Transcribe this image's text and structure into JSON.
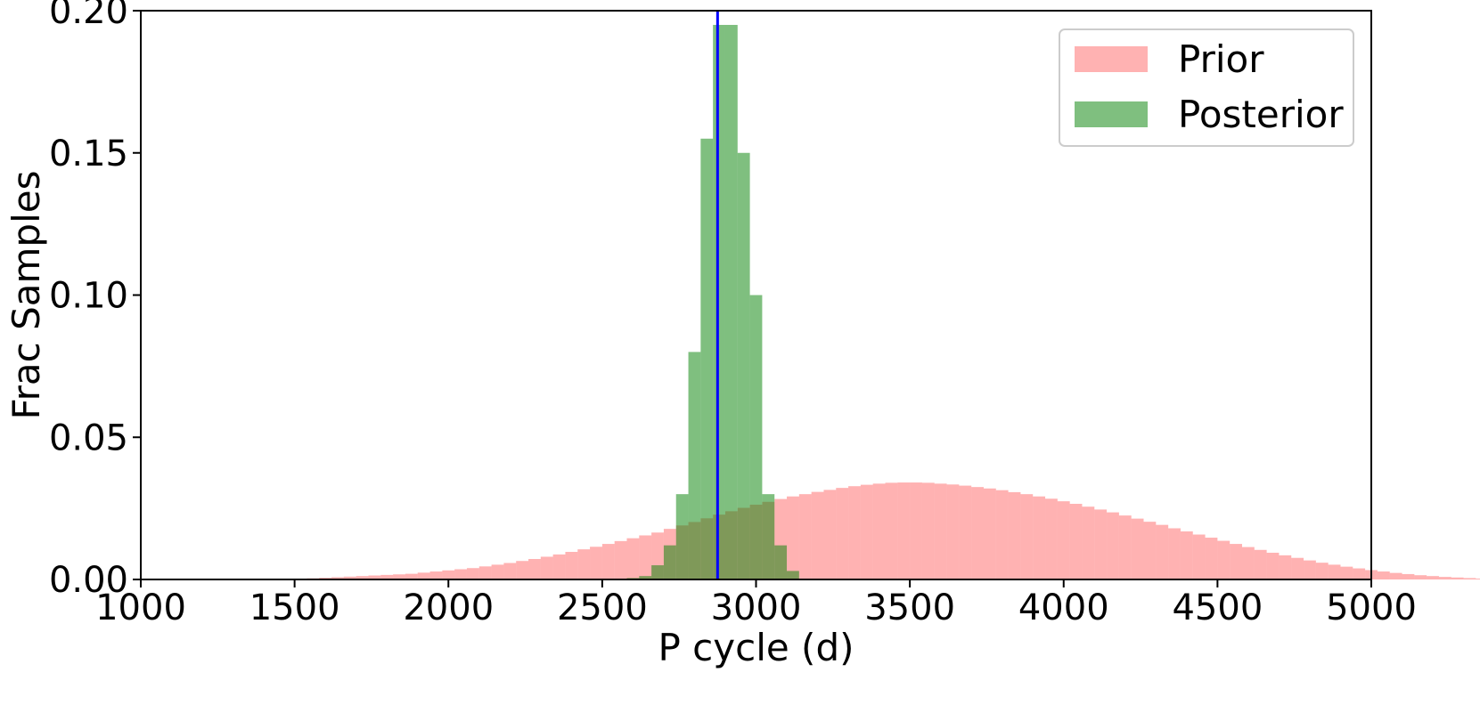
{
  "chart_data": {
    "type": "histogram",
    "title": "",
    "xlabel": "P cycle (d)",
    "ylabel": "Frac Samples",
    "xlim": [
      1000,
      5000
    ],
    "ylim": [
      0,
      0.2
    ],
    "x_ticks": [
      1000,
      1500,
      2000,
      2500,
      3000,
      3500,
      4000,
      4500,
      5000
    ],
    "y_ticks": [
      0.0,
      0.05,
      0.1,
      0.15,
      0.2
    ],
    "x_tick_labels": [
      "1000",
      "1500",
      "2000",
      "2500",
      "3000",
      "3500",
      "4000",
      "4500",
      "5000"
    ],
    "y_tick_labels": [
      "0.00",
      "0.05",
      "0.10",
      "0.15",
      "0.20"
    ],
    "grid": false,
    "legend_position": "top-right",
    "vertical_line": {
      "x": 2875,
      "color": "#0000ff"
    },
    "series": [
      {
        "name": "Prior",
        "color": "#ff0000",
        "opacity": 0.3,
        "bin_start": 1500,
        "bin_width": 40,
        "values": [
          0.0003,
          0.0004,
          0.0006,
          0.0008,
          0.001,
          0.0012,
          0.0014,
          0.0016,
          0.0018,
          0.002,
          0.0024,
          0.0028,
          0.0032,
          0.0036,
          0.004,
          0.0046,
          0.0052,
          0.0058,
          0.0065,
          0.0072,
          0.008,
          0.0088,
          0.0097,
          0.0106,
          0.0115,
          0.0125,
          0.0135,
          0.0145,
          0.0155,
          0.0165,
          0.0178,
          0.019,
          0.0202,
          0.0215,
          0.0228,
          0.024,
          0.0252,
          0.0263,
          0.0273,
          0.0283,
          0.0292,
          0.03,
          0.0308,
          0.0315,
          0.0322,
          0.0328,
          0.0333,
          0.0337,
          0.034,
          0.0341,
          0.0341,
          0.034,
          0.0337,
          0.0334,
          0.033,
          0.0325,
          0.032,
          0.0314,
          0.0307,
          0.03,
          0.0292,
          0.0284,
          0.0275,
          0.0266,
          0.0256,
          0.0246,
          0.0236,
          0.0225,
          0.0214,
          0.0203,
          0.0192,
          0.018,
          0.0169,
          0.0158,
          0.0147,
          0.0136,
          0.0125,
          0.0114,
          0.0104,
          0.0094,
          0.0085,
          0.0076,
          0.0067,
          0.0059,
          0.0052,
          0.0045,
          0.0039,
          0.0033,
          0.0028,
          0.0023,
          0.0019,
          0.0015,
          0.0012,
          0.0009,
          0.0007,
          0.0005,
          0.0003,
          0.0002,
          0.0001,
          0.0001,
          0.0001,
          0.0
        ]
      },
      {
        "name": "Posterior",
        "color": "#008000",
        "opacity": 0.5,
        "bin_start": 2580,
        "bin_width": 40,
        "values": [
          0.0005,
          0.0012,
          0.005,
          0.012,
          0.03,
          0.08,
          0.155,
          0.195,
          0.195,
          0.15,
          0.1,
          0.03,
          0.012,
          0.003
        ]
      }
    ]
  }
}
